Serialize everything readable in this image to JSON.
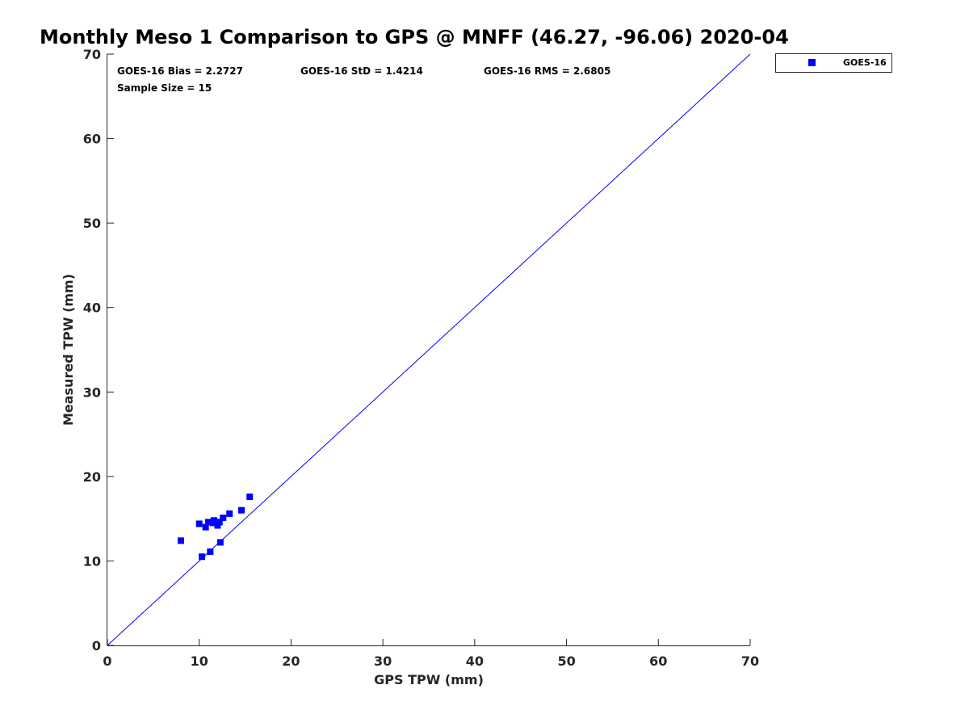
{
  "chart_data": {
    "type": "scatter",
    "title": "Monthly Meso 1 Comparison to GPS @ MNFF (46.27, -96.06) 2020-04",
    "xlabel": "GPS TPW (mm)",
    "ylabel": "Measured TPW (mm)",
    "xlim": [
      0,
      70
    ],
    "ylim": [
      0,
      70
    ],
    "xticks": [
      0,
      10,
      20,
      30,
      40,
      50,
      60,
      70
    ],
    "yticks": [
      0,
      10,
      20,
      30,
      40,
      50,
      60,
      70
    ],
    "xtick_labels": [
      "0",
      "10",
      "20",
      "30",
      "40",
      "50",
      "60",
      "70"
    ],
    "ytick_labels": [
      "0",
      "10",
      "20",
      "30",
      "40",
      "50",
      "60",
      "70"
    ],
    "grid": false,
    "legend_position": "top-right-outside",
    "reference_line": {
      "x": [
        0,
        70
      ],
      "y": [
        0,
        70
      ],
      "color": "#0000ff"
    },
    "annotations": {
      "bias": "GOES-16 Bias = 2.2727",
      "std": "GOES-16 StD = 1.4214",
      "rms": "GOES-16 RMS = 2.6805",
      "sample_size": "Sample Size = 15"
    },
    "series": [
      {
        "name": "GOES-16",
        "color": "#0000ff",
        "marker": "square",
        "points": [
          {
            "x": 8.0,
            "y": 12.4
          },
          {
            "x": 10.0,
            "y": 14.4
          },
          {
            "x": 10.3,
            "y": 10.5
          },
          {
            "x": 10.7,
            "y": 14.0
          },
          {
            "x": 11.0,
            "y": 14.6
          },
          {
            "x": 11.2,
            "y": 11.1
          },
          {
            "x": 11.6,
            "y": 14.8
          },
          {
            "x": 12.0,
            "y": 14.2
          },
          {
            "x": 12.2,
            "y": 14.6
          },
          {
            "x": 12.3,
            "y": 12.2
          },
          {
            "x": 12.6,
            "y": 15.1
          },
          {
            "x": 13.3,
            "y": 15.6
          },
          {
            "x": 14.6,
            "y": 16.0
          },
          {
            "x": 15.5,
            "y": 17.6
          },
          {
            "x": 11.5,
            "y": 14.5
          }
        ]
      }
    ]
  }
}
